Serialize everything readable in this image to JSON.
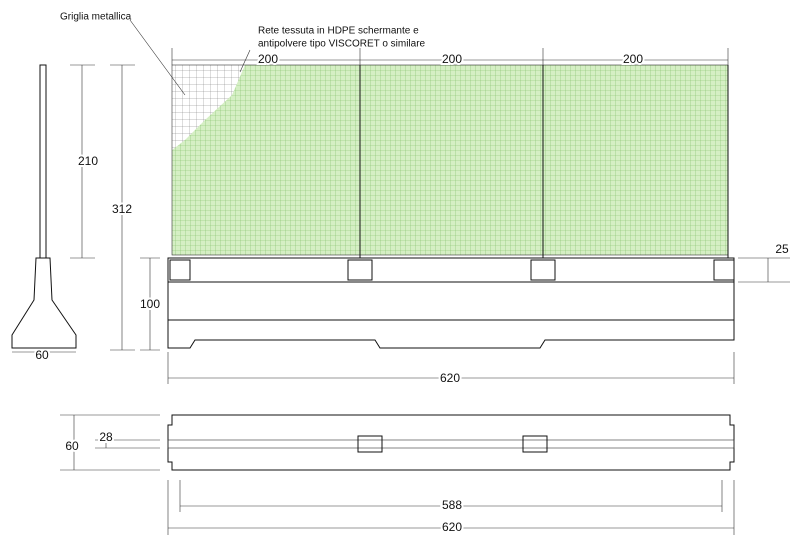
{
  "labels": {
    "griglia": "Griglia metallica",
    "rete": [
      "Rete tessuta in HDPE schermante e",
      "antipolvere tipo VISCORET o similare"
    ]
  },
  "dimensions": {
    "panel_widths": [
      "200",
      "200",
      "200"
    ],
    "mesh_height": "210",
    "total_height": "312",
    "slab": "25",
    "base_height": "100",
    "base_width": "60",
    "length": "620",
    "plan_width": "60",
    "plan_core": "28",
    "plan_inner": "588",
    "plan_length": "620"
  }
}
